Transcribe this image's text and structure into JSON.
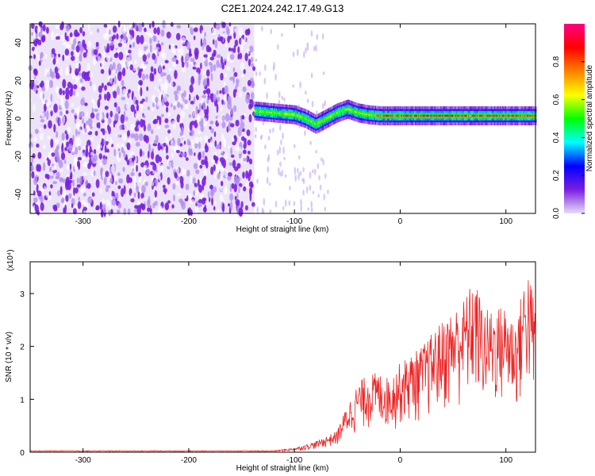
{
  "figure": {
    "title": "C2E1.2024.242.17.49.G13"
  },
  "chart_data": [
    {
      "type": "heatmap",
      "xlabel": "Height of straight line (km)",
      "ylabel": "Frequency (Hz)",
      "xlim": [
        -350,
        128
      ],
      "ylim": [
        -50,
        50
      ],
      "xticks": [
        -300,
        -200,
        -100,
        0,
        100
      ],
      "yticks": [
        -40,
        -20,
        0,
        20,
        40
      ],
      "colorbar": {
        "label": "Normalized spectral amplitude",
        "range": [
          0.0,
          1.0
        ],
        "ticks": [
          0.0,
          0.2,
          0.4,
          0.6,
          0.8
        ],
        "colormap": [
          "#e8dcf5",
          "#7a1fe0",
          "#0000ff",
          "#00ffff",
          "#00ff00",
          "#ffff00",
          "#ff8000",
          "#ff0000",
          "#ff0080"
        ]
      },
      "noise_region": {
        "x_start": -350,
        "x_end": -138
      },
      "signal_band": {
        "x": [
          -138,
          -120,
          -100,
          -90,
          -80,
          -70,
          -60,
          -50,
          -40,
          -30,
          -20,
          0,
          20,
          40,
          60,
          80,
          100,
          128
        ],
        "freq": [
          4,
          3,
          2,
          0,
          -3,
          0,
          3,
          5,
          3,
          2,
          1.5,
          1.5,
          1.5,
          1.5,
          1.5,
          1.5,
          1.5,
          1.5
        ]
      },
      "grid": false
    },
    {
      "type": "line",
      "xlabel": "Height of straight line (km)",
      "ylabel": "SNR (10 * v/v)",
      "y_multiplier": "(x10⁴)",
      "xlim": [
        -350,
        128
      ],
      "ylim": [
        0,
        3.6
      ],
      "xticks": [
        -300,
        -200,
        -100,
        0,
        100
      ],
      "yticks": [
        0,
        1,
        2,
        3
      ],
      "color": "#ee2222",
      "envelope": {
        "x": [
          -350,
          -120,
          -100,
          -80,
          -60,
          -50,
          -40,
          -30,
          -20,
          -10,
          0,
          20,
          40,
          60,
          70,
          80,
          100,
          110,
          120,
          128
        ],
        "y": [
          0.03,
          0.03,
          0.08,
          0.2,
          0.4,
          0.9,
          1.3,
          1.5,
          1.5,
          1.4,
          1.7,
          2.0,
          2.5,
          2.9,
          3.3,
          2.7,
          2.8,
          2.5,
          3.6,
          2.8
        ]
      },
      "grid": false
    }
  ]
}
